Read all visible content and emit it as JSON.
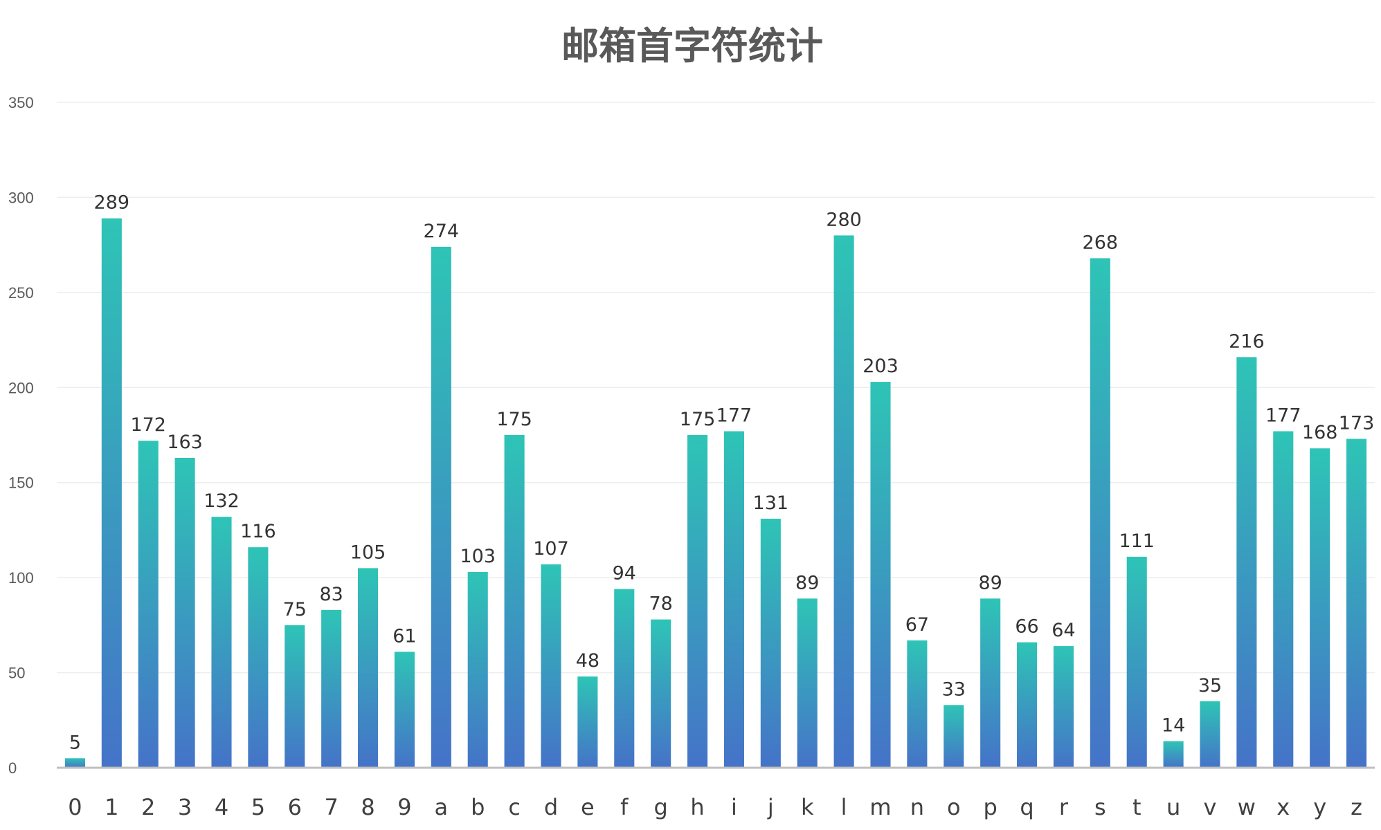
{
  "chart_data": {
    "type": "bar",
    "title": "邮箱首字符统计",
    "xlabel": "",
    "ylabel": "",
    "ylim": [
      0,
      350
    ],
    "yticks": [
      0,
      50,
      100,
      150,
      200,
      250,
      300,
      350
    ],
    "grid": true,
    "legend": "none",
    "categories": [
      "0",
      "1",
      "2",
      "3",
      "4",
      "5",
      "6",
      "7",
      "8",
      "9",
      "a",
      "b",
      "c",
      "d",
      "e",
      "f",
      "g",
      "h",
      "i",
      "j",
      "k",
      "l",
      "m",
      "n",
      "o",
      "p",
      "q",
      "r",
      "s",
      "t",
      "u",
      "v",
      "w",
      "x",
      "y",
      "z"
    ],
    "values": [
      5,
      289,
      172,
      163,
      132,
      116,
      75,
      83,
      105,
      61,
      274,
      103,
      175,
      107,
      48,
      94,
      78,
      175,
      177,
      131,
      89,
      280,
      203,
      67,
      33,
      89,
      66,
      64,
      268,
      111,
      14,
      35,
      216,
      177,
      168,
      173
    ],
    "colors": {
      "bar_top": "#2EC4B6",
      "bar_bottom": "#4573C8",
      "grid": "#EDEDED",
      "axis": "#BFBFBF"
    }
  }
}
